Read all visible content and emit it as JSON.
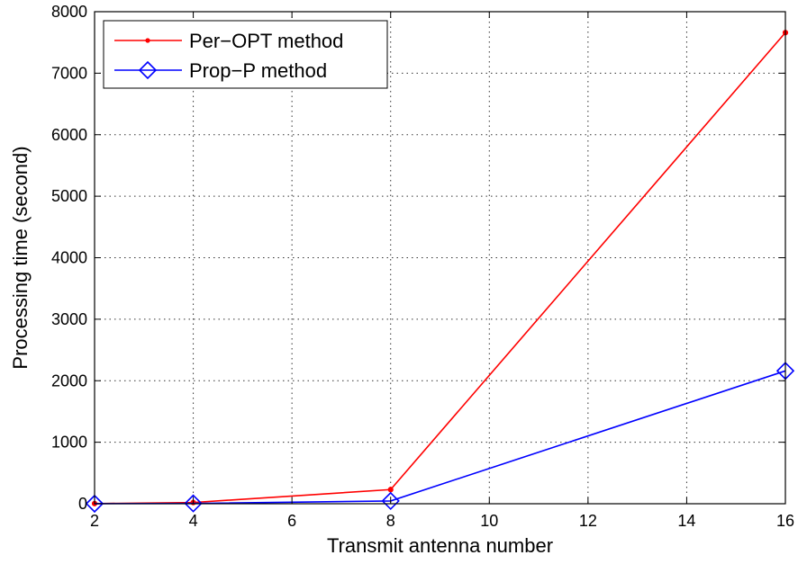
{
  "chart_data": {
    "type": "line",
    "xlabel": "Transmit antenna number",
    "ylabel": "Processing time (second)",
    "xlim": [
      2,
      16
    ],
    "ylim": [
      0,
      8000
    ],
    "x_ticks": [
      2,
      4,
      6,
      8,
      10,
      12,
      14,
      16
    ],
    "y_ticks": [
      0,
      1000,
      2000,
      3000,
      4000,
      5000,
      6000,
      7000,
      8000
    ],
    "grid": true,
    "legend_position": "top-left",
    "series": [
      {
        "name": "Per−OPT method",
        "color": "#ff0000",
        "marker": "dot",
        "x": [
          2,
          4,
          8,
          16
        ],
        "y": [
          2,
          20,
          230,
          7660
        ]
      },
      {
        "name": "Prop−P method",
        "color": "#0000ff",
        "marker": "diamond",
        "x": [
          2,
          4,
          8,
          16
        ],
        "y": [
          1,
          5,
          45,
          2160
        ]
      }
    ]
  }
}
